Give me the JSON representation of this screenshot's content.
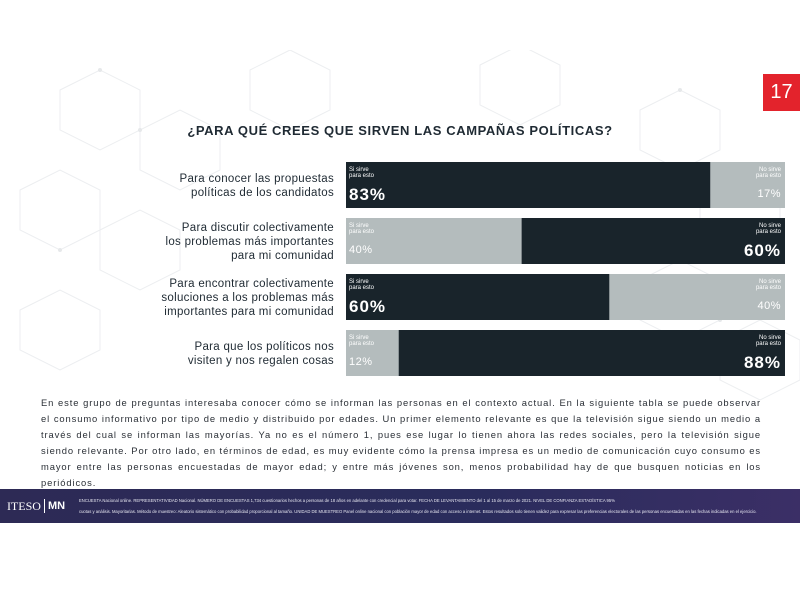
{
  "page_number": "17",
  "chart_data": {
    "type": "bar",
    "stacked": true,
    "orientation": "horizontal",
    "title": "¿PARA QUÉ CREES QUE SIRVEN LAS CAMPAÑAS POLÍTICAS?",
    "categories": [
      [
        "Para conocer las propuestas",
        "políticas de los candidatos"
      ],
      [
        "Para discutir colectivamente",
        "los problemas más importantes",
        "para mi comunidad"
      ],
      [
        "Para encontrar colectivamente",
        "soluciones a los problemas más",
        "importantes para mi comunidad"
      ],
      [
        "Para que los políticos nos",
        "visiten y nos regalen cosas"
      ]
    ],
    "series": [
      {
        "name": "Si sirve para esto",
        "label_lines": [
          "Si sirve",
          "para esto"
        ],
        "values": [
          83,
          40,
          60,
          12
        ]
      },
      {
        "name": "No sirve para esto",
        "label_lines": [
          "No sirve",
          "para esto"
        ],
        "values": [
          17,
          60,
          40,
          88
        ]
      }
    ],
    "value_labels": [
      [
        "83%",
        "17%"
      ],
      [
        "40%",
        "60%"
      ],
      [
        "60%",
        "40%"
      ],
      [
        "12%",
        "88%"
      ]
    ],
    "xlim": [
      0,
      100
    ],
    "grid": false,
    "colors": {
      "majority": "#19242b",
      "minority": "#b4bcbd"
    }
  },
  "body_text": "En este grupo de preguntas interesaba conocer cómo se informan las personas en el contexto actual. En la siguiente tabla se puede observar el consumo informativo por tipo de medio y distribuido por edades. Un primer elemento relevante es que la televisión sigue siendo un medio a través del cual se informan las mayorías. Ya no es el número 1, pues ese lugar lo tienen ahora las redes sociales, pero la televisión sigue siendo relevante. Por otro lado, en términos de edad, es muy evidente cómo la prensa impresa es un medio de comunicación cuyo consumo es mayor entre las personas encuestadas de mayor edad; y entre más jóvenes son, menos probabilidad hay de que busquen noticias en los periódicos.",
  "footer": {
    "logo_left": "ITESO",
    "logo_right": "MN",
    "line1": "ENCUESTA Nacional online. REPRESENTATIVIDAD Nacional. NÚMERO DE ENCUESTAS 1,734 cuestionarios hechos a personas de 18 años en adelante con credencial para votar. FECHA DE LEVANTAMIENTO del 1 al 15 de marzo de 2021. NIVEL DE CONFIANZA ESTADÍSTICA 95%",
    "line2": "cuotas y análisis. Mayoritarias. Método de muestreo: Aleatorio sistemático con probabilidad proporcional al tamaño. UNIDAD DE MUESTREO Panel online nacional con población mayor de edad con acceso a internet. Estos resultados solo tienen validez para expresar las preferencias electorales de las personas encuestadas en las fechas indicadas en el ejercicio."
  }
}
